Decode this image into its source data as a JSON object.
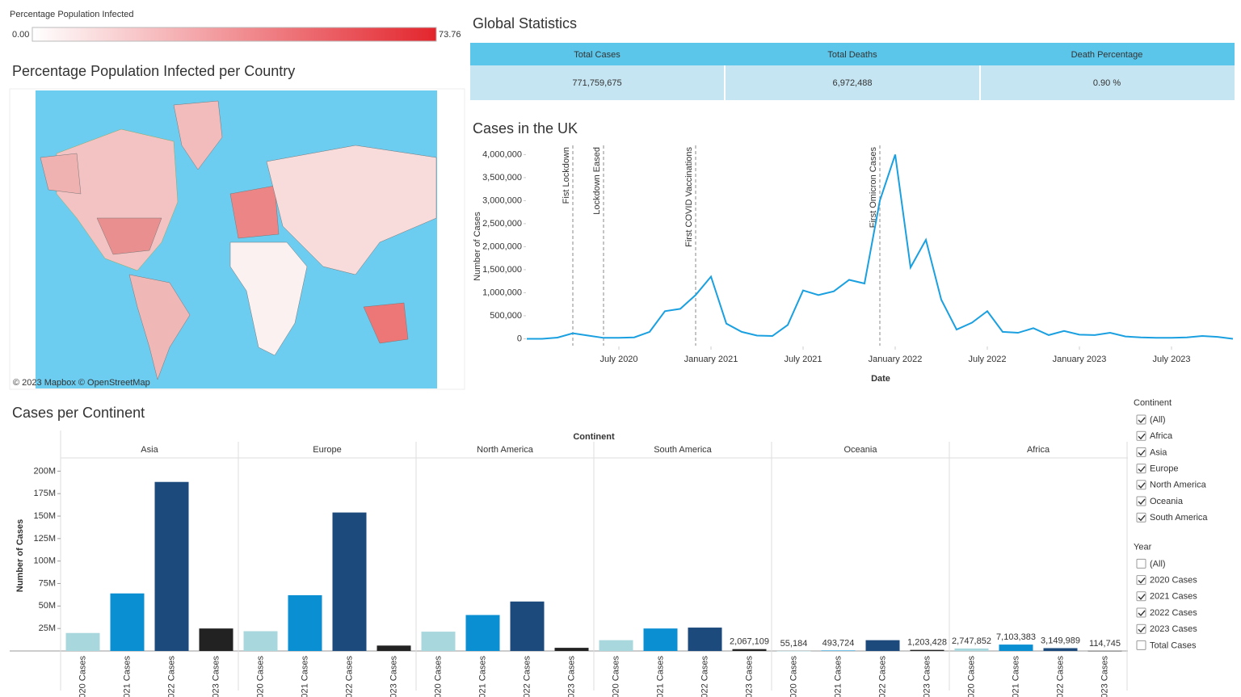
{
  "legend": {
    "title": "Percentage Population Infected",
    "min": "0.00",
    "max": "73.76"
  },
  "map": {
    "title": "Percentage Population Infected per Country",
    "attribution": "© 2023 Mapbox © OpenStreetMap"
  },
  "stats": {
    "title": "Global Statistics",
    "headers": [
      "Total Cases",
      "Total Deaths",
      "Death Percentage"
    ],
    "values": [
      "771,759,675",
      "6,972,488",
      "0.90 %"
    ]
  },
  "chart_data": [
    {
      "type": "line",
      "title": "Cases in the UK",
      "x_label": "Date",
      "y_label": "Number of Cases",
      "color": "#1aa0e0",
      "x": [
        "2020-01",
        "2020-02",
        "2020-03",
        "2020-04",
        "2020-05",
        "2020-06",
        "2020-07",
        "2020-08",
        "2020-09",
        "2020-10",
        "2020-11",
        "2020-12",
        "2021-01",
        "2021-02",
        "2021-03",
        "2021-04",
        "2021-05",
        "2021-06",
        "2021-07",
        "2021-08",
        "2021-09",
        "2021-10",
        "2021-11",
        "2021-12",
        "2022-01",
        "2022-02",
        "2022-03",
        "2022-04",
        "2022-05",
        "2022-06",
        "2022-07",
        "2022-08",
        "2022-09",
        "2022-10",
        "2022-11",
        "2022-12",
        "2023-01",
        "2023-02",
        "2023-03",
        "2023-04",
        "2023-05",
        "2023-06",
        "2023-07",
        "2023-08",
        "2023-09",
        "2023-10",
        "2023-11"
      ],
      "values": [
        0,
        0,
        25000,
        120000,
        70000,
        20000,
        20000,
        30000,
        150000,
        600000,
        650000,
        950000,
        1350000,
        330000,
        150000,
        70000,
        60000,
        300000,
        1050000,
        950000,
        1030000,
        1280000,
        1200000,
        3000000,
        4000000,
        1550000,
        2150000,
        850000,
        200000,
        350000,
        600000,
        150000,
        130000,
        230000,
        80000,
        170000,
        90000,
        80000,
        130000,
        50000,
        30000,
        20000,
        20000,
        30000,
        60000,
        40000,
        0
      ],
      "xlim": [
        "2020-01",
        "2023-11"
      ],
      "xticks": [
        {
          "value": "2020-07",
          "label": "July 2020"
        },
        {
          "value": "2021-01",
          "label": "January 2021"
        },
        {
          "value": "2021-07",
          "label": "July 2021"
        },
        {
          "value": "2022-01",
          "label": "January 2022"
        },
        {
          "value": "2022-07",
          "label": "July 2022"
        },
        {
          "value": "2023-01",
          "label": "January 2023"
        },
        {
          "value": "2023-07",
          "label": "July 2023"
        }
      ],
      "ylim": [
        -150000,
        4200000
      ],
      "yticks": [
        0,
        {
          "value": 500000,
          "label": "500,000"
        },
        {
          "value": 1000000,
          "label": "1,000,000"
        },
        {
          "value": 1500000,
          "label": "1,500,000"
        },
        {
          "value": 2000000,
          "label": "2,000,000"
        },
        {
          "value": 2500000,
          "label": "2,500,000"
        },
        {
          "value": 3000000,
          "label": "3,000,000"
        },
        {
          "value": 3500000,
          "label": "3,500,000"
        },
        {
          "value": 4000000,
          "label": "4,000,000"
        }
      ],
      "annotations": [
        {
          "x": "2020-04",
          "text": "Fist Lockdown"
        },
        {
          "x": "2020-06",
          "text": "Lockdown Eased"
        },
        {
          "x": "2020-12",
          "text": "First COVID Vaccinations"
        },
        {
          "x": "2021-12",
          "text": "First Omicron Cases"
        }
      ]
    },
    {
      "type": "grouped_bar",
      "title": "Cases per Continent",
      "category_label": "Continent",
      "y_label": "Number of Cases",
      "categories": [
        "Asia",
        "Europe",
        "North America",
        "South America",
        "Oceania",
        "Africa"
      ],
      "series": [
        {
          "name": "2020 Cases",
          "color": "#a8d8de",
          "values": [
            20000000,
            22000000,
            21500000,
            12000000,
            55184,
            2747852
          ],
          "value_labels": [
            null,
            null,
            null,
            null,
            "55,184",
            "2,747,852"
          ]
        },
        {
          "name": "2021 Cases",
          "color": "#0b8fd3",
          "values": [
            64000000,
            62000000,
            40000000,
            25000000,
            493724,
            7103383
          ],
          "value_labels": [
            null,
            null,
            null,
            null,
            "493,724",
            "7,103,383"
          ]
        },
        {
          "name": "2022 Cases",
          "color": "#1c4a7c",
          "values": [
            188000000,
            154000000,
            55000000,
            26000000,
            12000000,
            3149989
          ],
          "value_labels": [
            null,
            null,
            null,
            null,
            null,
            "3,149,989"
          ]
        },
        {
          "name": "2023 Cases",
          "color": "#222222",
          "values": [
            25000000,
            6000000,
            3500000,
            2067109,
            1203428,
            114745
          ],
          "value_labels": [
            null,
            null,
            null,
            "2,067,109",
            "1,203,428",
            "114,745"
          ]
        }
      ],
      "ylim": [
        0,
        212000000
      ],
      "yticks": [
        {
          "value": 25000000,
          "label": "25M"
        },
        {
          "value": 50000000,
          "label": "50M"
        },
        {
          "value": 75000000,
          "label": "75M"
        },
        {
          "value": 100000000,
          "label": "100M"
        },
        {
          "value": 125000000,
          "label": "125M"
        },
        {
          "value": 150000000,
          "label": "150M"
        },
        {
          "value": 175000000,
          "label": "175M"
        },
        {
          "value": 200000000,
          "label": "200M"
        }
      ]
    }
  ],
  "filters": [
    {
      "title": "Continent",
      "options": [
        {
          "label": "(All)",
          "checked": true
        },
        {
          "label": "Africa",
          "checked": true
        },
        {
          "label": "Asia",
          "checked": true
        },
        {
          "label": "Europe",
          "checked": true
        },
        {
          "label": "North America",
          "checked": true
        },
        {
          "label": "Oceania",
          "checked": true
        },
        {
          "label": "South America",
          "checked": true
        }
      ]
    },
    {
      "title": "Year",
      "options": [
        {
          "label": "(All)",
          "checked": false
        },
        {
          "label": "2020 Cases",
          "checked": true
        },
        {
          "label": "2021 Cases",
          "checked": true
        },
        {
          "label": "2022 Cases",
          "checked": true
        },
        {
          "label": "2023 Cases",
          "checked": true
        },
        {
          "label": "Total Cases",
          "checked": false
        }
      ]
    }
  ]
}
